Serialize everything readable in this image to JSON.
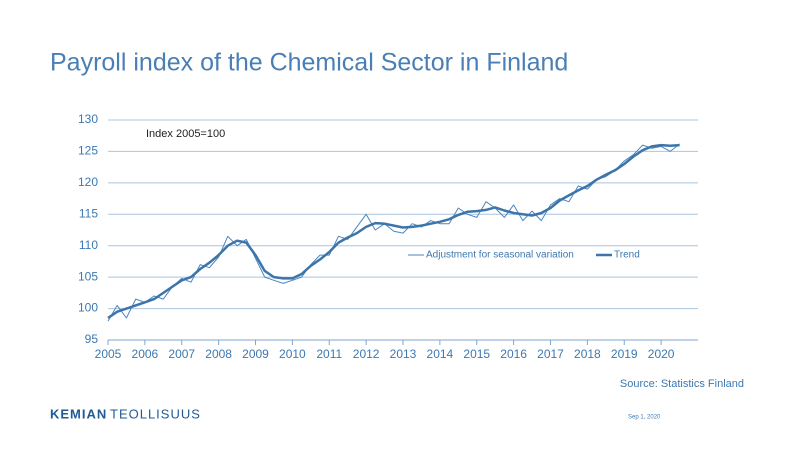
{
  "chart_data": {
    "type": "line",
    "title": "Payroll index of the Chemical Sector in Finland",
    "annotation": "Index 2005=100",
    "x": [
      2005,
      2005.25,
      2005.5,
      2005.75,
      2006,
      2006.25,
      2006.5,
      2006.75,
      2007,
      2007.25,
      2007.5,
      2007.75,
      2008,
      2008.25,
      2008.5,
      2008.75,
      2009,
      2009.25,
      2009.5,
      2009.75,
      2010,
      2010.25,
      2010.5,
      2010.75,
      2011,
      2011.25,
      2011.5,
      2011.75,
      2012,
      2012.25,
      2012.5,
      2012.75,
      2013,
      2013.25,
      2013.5,
      2013.75,
      2014,
      2014.25,
      2014.5,
      2014.75,
      2015,
      2015.25,
      2015.5,
      2015.75,
      2016,
      2016.25,
      2016.5,
      2016.75,
      2017,
      2017.25,
      2017.5,
      2017.75,
      2018,
      2018.25,
      2018.5,
      2018.75,
      2019,
      2019.25,
      2019.5,
      2019.75,
      2020,
      2020.25,
      2020.5
    ],
    "series": [
      {
        "name": "Adjustment for seasonal variation",
        "color": "#4a86bf",
        "width": 1,
        "values": [
          98,
          100.5,
          98.5,
          101.5,
          101,
          102,
          101.5,
          103.5,
          104.8,
          104.2,
          107,
          106.5,
          108.2,
          111.5,
          110,
          111,
          108,
          105,
          104.5,
          104,
          104.5,
          105,
          107,
          108.5,
          108.5,
          111.5,
          111,
          113,
          115,
          112.5,
          113.5,
          112.3,
          112,
          113.5,
          113,
          114,
          113.5,
          113.5,
          116,
          115,
          114.5,
          117,
          116,
          114.5,
          116.5,
          114,
          115.5,
          114,
          116.5,
          117.5,
          117,
          119.5,
          119,
          120.5,
          121,
          122,
          123.5,
          124.5,
          126,
          125.5,
          125.8,
          125,
          126.2
        ]
      },
      {
        "name": "Trend",
        "color": "#3d74aa",
        "width": 2.5,
        "values": [
          98.5,
          99.5,
          100,
          100.5,
          101,
          101.5,
          102.5,
          103.5,
          104.5,
          105,
          106.3,
          107.3,
          108.5,
          110,
          110.8,
          110.5,
          108.5,
          106,
          105,
          104.8,
          104.8,
          105.5,
          106.8,
          107.8,
          109,
          110.5,
          111.3,
          112,
          113,
          113.6,
          113.5,
          113.2,
          112.9,
          113,
          113.2,
          113.5,
          113.8,
          114.2,
          114.9,
          115.4,
          115.5,
          115.7,
          116.1,
          115.6,
          115.2,
          115,
          114.8,
          115.2,
          116,
          117.2,
          118,
          118.8,
          119.5,
          120.5,
          121.3,
          122,
          123,
          124.2,
          125.2,
          125.8,
          126,
          125.9,
          126
        ]
      }
    ],
    "xlim": [
      2005,
      2021
    ],
    "xticks": [
      2005,
      2006,
      2007,
      2008,
      2009,
      2010,
      2011,
      2012,
      2013,
      2014,
      2015,
      2016,
      2017,
      2018,
      2019,
      2020
    ],
    "ylim": [
      95,
      130
    ],
    "yticks": [
      95,
      100,
      105,
      110,
      115,
      120,
      125,
      130
    ],
    "grid": true
  },
  "source": "Source: Statistics Finland",
  "logo": {
    "bold": "KEMIAN",
    "regular": "TEOLLISUUS"
  },
  "date": "Sep 1, 2020"
}
